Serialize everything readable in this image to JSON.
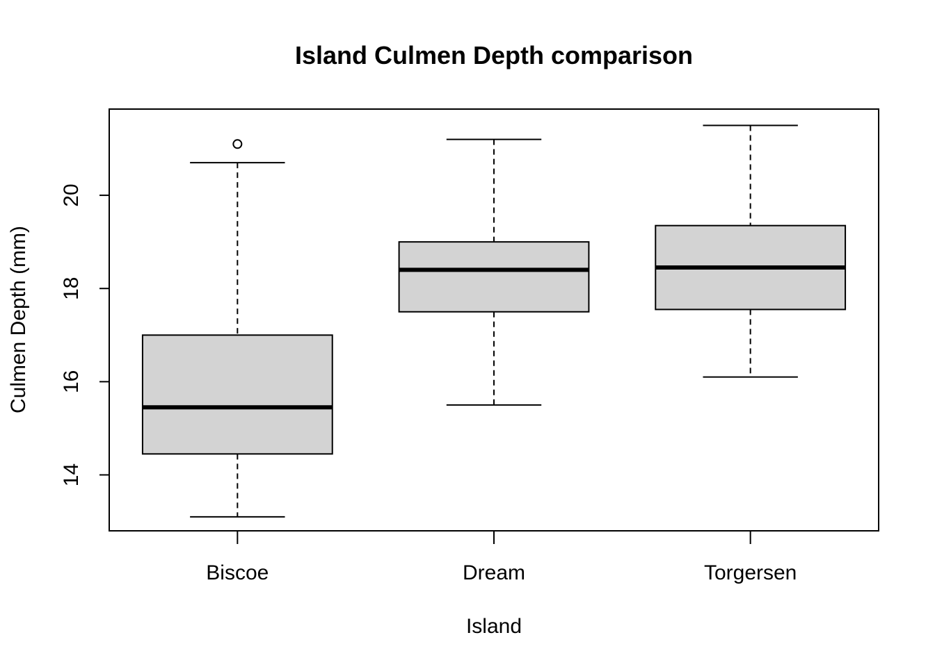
{
  "chart_data": {
    "type": "box",
    "title": "Island Culmen Depth comparison",
    "xlabel": "Island",
    "ylabel": "Culmen Depth (mm)",
    "ylim": [
      12.8,
      21.85
    ],
    "yticks": [
      14,
      16,
      18,
      20
    ],
    "grid": false,
    "legend": "none",
    "box_fill": "#d3d3d3",
    "categories": [
      "Biscoe",
      "Dream",
      "Torgersen"
    ],
    "series": [
      {
        "category": "Biscoe",
        "whisker_low": 13.1,
        "q1": 14.45,
        "median": 15.45,
        "q3": 17.0,
        "whisker_high": 20.7,
        "outliers": [
          21.1
        ]
      },
      {
        "category": "Dream",
        "whisker_low": 15.5,
        "q1": 17.5,
        "median": 18.4,
        "q3": 19.0,
        "whisker_high": 21.2,
        "outliers": []
      },
      {
        "category": "Torgersen",
        "whisker_low": 16.1,
        "q1": 17.55,
        "median": 18.45,
        "q3": 19.35,
        "whisker_high": 21.5,
        "outliers": []
      }
    ]
  }
}
